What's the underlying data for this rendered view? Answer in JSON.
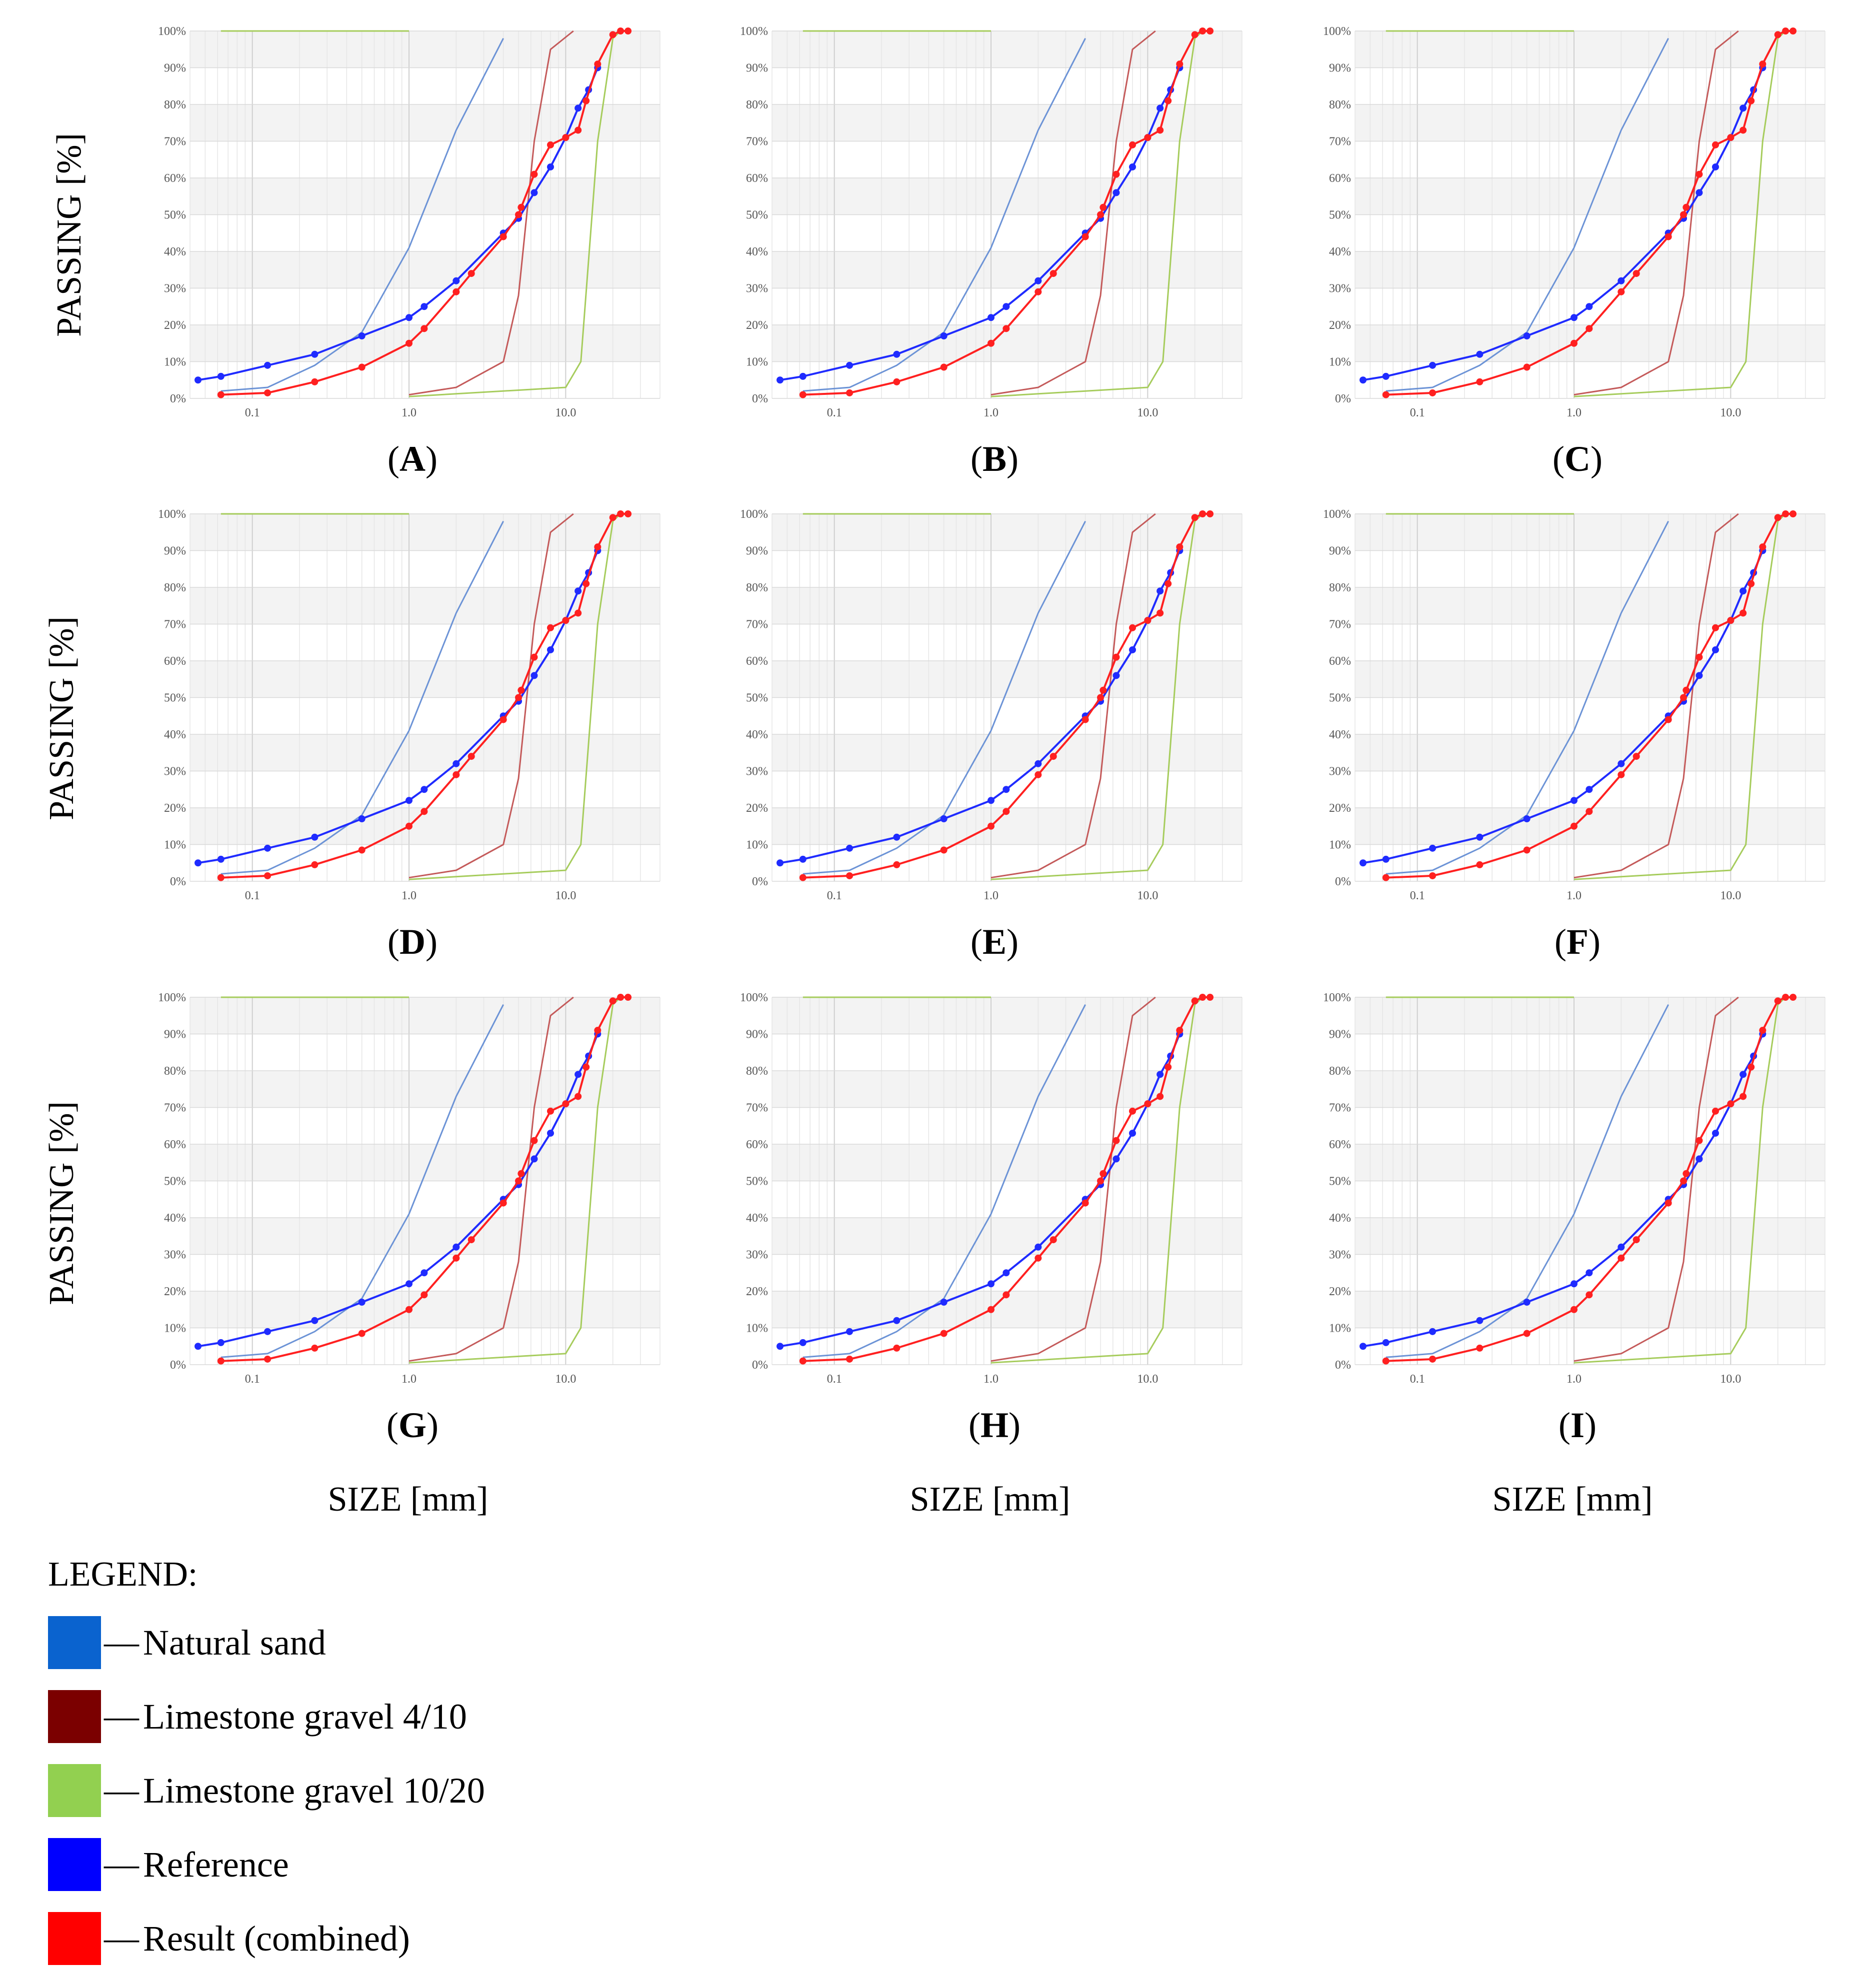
{
  "y_axis_label": "PASSING [%]",
  "x_axis_label": "SIZE [mm]",
  "legend": {
    "title": "LEGEND:",
    "items": [
      {
        "label": "Natural sand",
        "color": "#0a63cf"
      },
      {
        "label": "Limestone gravel 4/10",
        "color": "#7b0000"
      },
      {
        "label": "Limestone gravel 10/20",
        "color": "#92d050"
      },
      {
        "label": "Reference",
        "color": "#0000ff"
      },
      {
        "label": "Result (combined)",
        "color": "#ff0000"
      }
    ]
  },
  "chart_data": {
    "type": "line",
    "x_scale": "log",
    "xlim": [
      0.04,
      40
    ],
    "ylim": [
      0,
      100
    ],
    "x_ticks": [
      {
        "value": 0.1,
        "label": "0.1"
      },
      {
        "value": 1,
        "label": "1.0"
      },
      {
        "value": 10,
        "label": "10.0"
      }
    ],
    "y_ticks": [
      {
        "value": 0,
        "label": "0%"
      },
      {
        "value": 10,
        "label": "10%"
      },
      {
        "value": 20,
        "label": "20%"
      },
      {
        "value": 30,
        "label": "30%"
      },
      {
        "value": 40,
        "label": "40%"
      },
      {
        "value": 50,
        "label": "50%"
      },
      {
        "value": 60,
        "label": "60%"
      },
      {
        "value": 70,
        "label": "70%"
      },
      {
        "value": 80,
        "label": "80%"
      },
      {
        "value": 90,
        "label": "90%"
      },
      {
        "value": 100,
        "label": "100%"
      }
    ],
    "xlabel": "SIZE [mm]",
    "ylabel": "PASSING [%]",
    "common_series": [
      {
        "name": "Natural sand",
        "color": "#6c93d6",
        "markers": false,
        "x": [
          0.063,
          0.125,
          0.25,
          0.5,
          1,
          2,
          4
        ],
        "y": [
          2,
          3,
          9,
          18,
          41,
          73,
          98
        ]
      },
      {
        "name": "Limestone gravel 4/10",
        "color": "#c45a5a",
        "markers": false,
        "x": [
          1,
          2,
          4,
          5,
          6.3,
          8,
          11.2
        ],
        "y": [
          1,
          3,
          10,
          28,
          70,
          95,
          100
        ]
      },
      {
        "name": "Limestone gravel 10/20",
        "color": "#a6cc5c",
        "markers": false,
        "x": [
          1,
          10,
          12.5,
          16,
          20,
          22.4
        ],
        "y": [
          0.5,
          3,
          10,
          70,
          98,
          100
        ]
      },
      {
        "name": "Limestone gravel 10/20 (top line)",
        "color": "#a6cc5c",
        "markers": false,
        "x": [
          0.063,
          1
        ],
        "y": [
          100,
          100
        ]
      },
      {
        "name": "Reference",
        "color": "#1f2bff",
        "markers": true,
        "x": [
          0.045,
          0.063,
          0.125,
          0.25,
          0.5,
          1,
          1.25,
          2,
          4,
          5,
          6.3,
          8,
          10,
          12,
          14,
          16
        ],
        "y": [
          5,
          6,
          9,
          12,
          17,
          22,
          25,
          32,
          45,
          49,
          56,
          63,
          71,
          79,
          84,
          90
        ]
      }
    ],
    "panels": [
      {
        "label": "A",
        "series": [
          {
            "name": "Result (combined)",
            "color": "#ff2020",
            "markers": true,
            "x": [
              0.063,
              0.125,
              0.25,
              0.5,
              1,
              1.25,
              2,
              2.5,
              4,
              5,
              5.2,
              6.3,
              8,
              10,
              12,
              13.5,
              16,
              20,
              22.4,
              25
            ],
            "y": [
              1,
              1.5,
              4.5,
              8.5,
              15,
              19,
              29,
              34,
              44,
              50,
              52,
              61,
              69,
              71,
              73,
              81,
              91,
              99,
              100,
              100
            ]
          }
        ]
      },
      {
        "label": "B",
        "series": [
          {
            "name": "Result (combined)",
            "color": "#ff2020",
            "markers": true,
            "x": [
              0.063,
              0.125,
              0.25,
              0.5,
              1,
              1.25,
              2,
              2.5,
              4,
              5,
              5.2,
              6.3,
              8,
              10,
              12,
              13.5,
              16,
              20,
              22.4,
              25
            ],
            "y": [
              1,
              1.5,
              4.5,
              8.5,
              15,
              19,
              29,
              34,
              44,
              50,
              52,
              61,
              69,
              71,
              73,
              81,
              91,
              99,
              100,
              100
            ]
          }
        ]
      },
      {
        "label": "C",
        "series": [
          {
            "name": "Result (combined)",
            "color": "#ff2020",
            "markers": true,
            "x": [
              0.063,
              0.125,
              0.25,
              0.5,
              1,
              1.25,
              2,
              2.5,
              4,
              5,
              5.2,
              6.3,
              8,
              10,
              12,
              13.5,
              16,
              20,
              22.4,
              25
            ],
            "y": [
              1,
              1.5,
              4.5,
              8.5,
              15,
              19,
              29,
              34,
              44,
              50,
              52,
              61,
              69,
              71,
              73,
              81,
              91,
              99,
              100,
              100
            ]
          }
        ]
      },
      {
        "label": "D",
        "series": [
          {
            "name": "Result (combined)",
            "color": "#ff2020",
            "markers": true,
            "x": [
              0.063,
              0.125,
              0.25,
              0.5,
              1,
              1.25,
              2,
              2.5,
              4,
              5,
              5.2,
              6.3,
              8,
              10,
              12,
              13.5,
              16,
              20,
              22.4,
              25
            ],
            "y": [
              1,
              1.5,
              4.5,
              8.5,
              15,
              19,
              29,
              34,
              44,
              50,
              52,
              61,
              69,
              71,
              73,
              81,
              91,
              99,
              100,
              100
            ]
          }
        ]
      },
      {
        "label": "E",
        "series": [
          {
            "name": "Result (combined)",
            "color": "#ff2020",
            "markers": true,
            "x": [
              0.063,
              0.125,
              0.25,
              0.5,
              1,
              1.25,
              2,
              2.5,
              4,
              5,
              5.2,
              6.3,
              8,
              10,
              12,
              13.5,
              16,
              20,
              22.4,
              25
            ],
            "y": [
              1,
              1.5,
              4.5,
              8.5,
              15,
              19,
              29,
              34,
              44,
              50,
              52,
              61,
              69,
              71,
              73,
              81,
              91,
              99,
              100,
              100
            ]
          }
        ]
      },
      {
        "label": "F",
        "series": [
          {
            "name": "Result (combined)",
            "color": "#ff2020",
            "markers": true,
            "x": [
              0.063,
              0.125,
              0.25,
              0.5,
              1,
              1.25,
              2,
              2.5,
              4,
              5,
              5.2,
              6.3,
              8,
              10,
              12,
              13.5,
              16,
              20,
              22.4,
              25
            ],
            "y": [
              1,
              1.5,
              4.5,
              8.5,
              15,
              19,
              29,
              34,
              44,
              50,
              52,
              61,
              69,
              71,
              73,
              81,
              91,
              99,
              100,
              100
            ]
          }
        ]
      },
      {
        "label": "G",
        "series": [
          {
            "name": "Result (combined)",
            "color": "#ff2020",
            "markers": true,
            "x": [
              0.063,
              0.125,
              0.25,
              0.5,
              1,
              1.25,
              2,
              2.5,
              4,
              5,
              5.2,
              6.3,
              8,
              10,
              12,
              13.5,
              16,
              20,
              22.4,
              25
            ],
            "y": [
              1,
              1.5,
              4.5,
              8.5,
              15,
              19,
              29,
              34,
              44,
              50,
              52,
              61,
              69,
              71,
              73,
              81,
              91,
              99,
              100,
              100
            ]
          }
        ]
      },
      {
        "label": "H",
        "series": [
          {
            "name": "Result (combined)",
            "color": "#ff2020",
            "markers": true,
            "x": [
              0.063,
              0.125,
              0.25,
              0.5,
              1,
              1.25,
              2,
              2.5,
              4,
              5,
              5.2,
              6.3,
              8,
              10,
              12,
              13.5,
              16,
              20,
              22.4,
              25
            ],
            "y": [
              1,
              1.5,
              4.5,
              8.5,
              15,
              19,
              29,
              34,
              44,
              50,
              52,
              61,
              69,
              71,
              73,
              81,
              91,
              99,
              100,
              100
            ]
          }
        ]
      },
      {
        "label": "I",
        "series": [
          {
            "name": "Result (combined)",
            "color": "#ff2020",
            "markers": true,
            "x": [
              0.063,
              0.125,
              0.25,
              0.5,
              1,
              1.25,
              2,
              2.5,
              4,
              5,
              5.2,
              6.3,
              8,
              10,
              12,
              13.5,
              16,
              20,
              22.4,
              25
            ],
            "y": [
              1,
              1.5,
              4.5,
              8.5,
              15,
              19,
              29,
              34,
              44,
              50,
              52,
              61,
              69,
              71,
              73,
              81,
              91,
              99,
              100,
              100
            ]
          }
        ]
      }
    ]
  }
}
